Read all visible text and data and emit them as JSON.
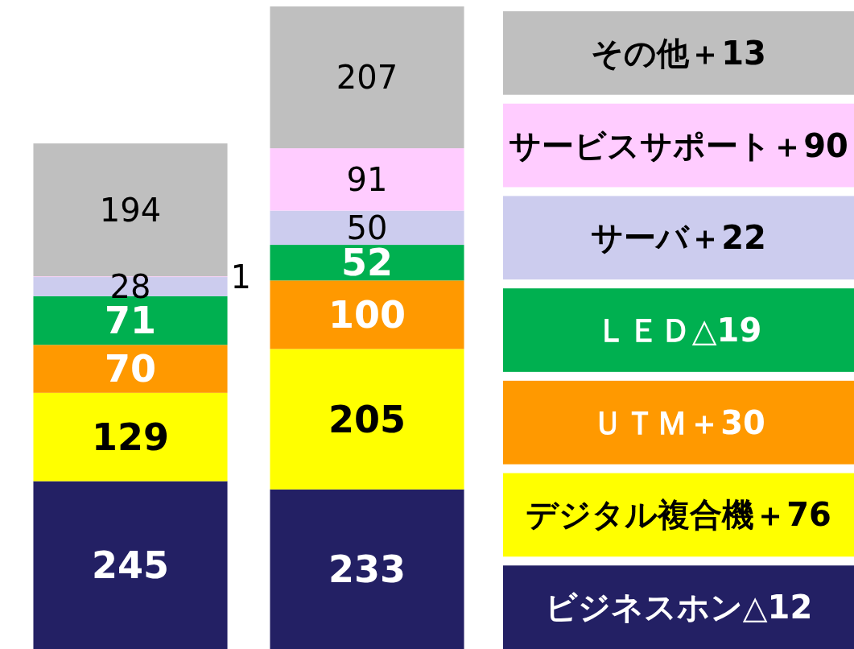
{
  "chart_data": {
    "type": "bar",
    "stacked": true,
    "categories": [
      null,
      null
    ],
    "data_labels": true,
    "legend": "right",
    "series": [
      {
        "name": "ビジネスホン△12",
        "color": "#232064",
        "values": [
          245,
          233
        ]
      },
      {
        "name": "デジタル複合機＋76",
        "color": "#ffff00",
        "values": [
          129,
          205
        ]
      },
      {
        "name": "ＵＴＭ＋30",
        "color": "#ff9900",
        "values": [
          70,
          100
        ]
      },
      {
        "name": "ＬＥＤ△19",
        "color": "#00b050",
        "values": [
          71,
          52
        ]
      },
      {
        "name": "サーバ＋22",
        "color": "#ccccee",
        "values": [
          28,
          50
        ]
      },
      {
        "name": "サービスサポート＋90",
        "color": "#ffccff",
        "values": [
          1,
          91
        ]
      },
      {
        "name": "その他＋13",
        "color": "#bfbfbf",
        "values": [
          194,
          207
        ]
      }
    ]
  }
}
